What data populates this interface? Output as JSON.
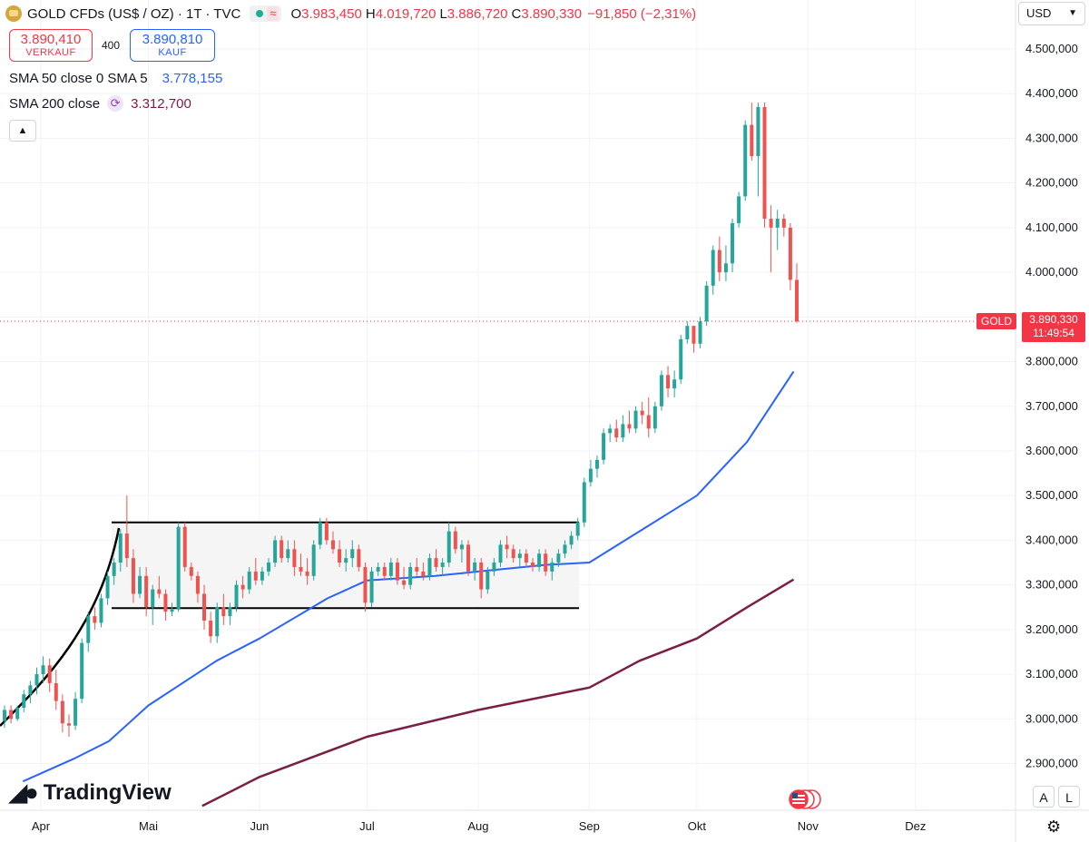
{
  "header": {
    "title": "GOLD CFDs (US$ / OZ) · 1T · TVC",
    "status_wave": "≈",
    "ohlc": [
      {
        "label": "O",
        "value": "3.983,450"
      },
      {
        "label": "H",
        "value": "4.019,720"
      },
      {
        "label": "L",
        "value": "3.886,720"
      },
      {
        "label": "C",
        "value": "3.890,330"
      }
    ],
    "change": "−91,850 (−2,31%)"
  },
  "trade": {
    "sell_price": "3.890,410",
    "sell_label": "VERKAUF",
    "spread": "400",
    "buy_price": "3.890,810",
    "buy_label": "KAUF"
  },
  "indicators": [
    {
      "label": "SMA 50 close 0 SMA 5",
      "icon": "⟳",
      "value": "3.778,155",
      "color": "#2962ff"
    },
    {
      "label": "SMA 200 close",
      "icon": "⟳",
      "value": "3.312,700",
      "color": "#7b1e45"
    }
  ],
  "currency": "USD",
  "current_price": {
    "symbol": "GOLD",
    "price": "3.890,330",
    "countdown": "11:49:54"
  },
  "logo": "TradingView",
  "scale_buttons": {
    "auto": "A",
    "log": "L"
  },
  "colors": {
    "up": "#26a69a",
    "down": "#ef5350",
    "sma50": "#2962ff",
    "sma200": "#7b1e45",
    "price_line": "#f23645"
  },
  "chart_data": {
    "type": "candlestick",
    "title": "GOLD CFDs (US$ / OZ)",
    "y_axis": {
      "ticks": [
        "4.500,000",
        "4.400,000",
        "4.300,000",
        "4.200,000",
        "4.100,000",
        "4.000,000",
        "3.900,000",
        "3.800,000",
        "3.700,000",
        "3.600,000",
        "3.500,000",
        "3.400,000",
        "3.300,000",
        "3.200,000",
        "3.100,000",
        "3.000,000",
        "2.900,000"
      ],
      "range": [
        2840,
        4545
      ]
    },
    "x_axis": {
      "ticks": [
        "Apr",
        "Mai",
        "Jun",
        "Jul",
        "Aug",
        "Sep",
        "Okt",
        "Nov",
        "Dez"
      ],
      "tick_dates": [
        "2025-04-01",
        "2025-05-01",
        "2025-06-01",
        "2025-07-01",
        "2025-08-01",
        "2025-09-01",
        "2025-10-01",
        "2025-11-01",
        "2025-12-01"
      ]
    },
    "grid": true,
    "series": [
      {
        "name": "SMA 50 close",
        "points": [
          [
            "2025-03-27",
            2860
          ],
          [
            "2025-04-10",
            2910
          ],
          [
            "2025-04-20",
            2950
          ],
          [
            "2025-05-01",
            3030
          ],
          [
            "2025-05-20",
            3130
          ],
          [
            "2025-06-01",
            3180
          ],
          [
            "2025-06-20",
            3270
          ],
          [
            "2025-07-01",
            3310
          ],
          [
            "2025-07-20",
            3320
          ],
          [
            "2025-08-01",
            3330
          ],
          [
            "2025-08-20",
            3345
          ],
          [
            "2025-09-01",
            3350
          ],
          [
            "2025-09-15",
            3420
          ],
          [
            "2025-10-01",
            3500
          ],
          [
            "2025-10-15",
            3620
          ],
          [
            "2025-10-28",
            3778
          ]
        ]
      },
      {
        "name": "SMA 200 close",
        "points": [
          [
            "2025-05-16",
            2805
          ],
          [
            "2025-06-01",
            2870
          ],
          [
            "2025-07-01",
            2960
          ],
          [
            "2025-08-01",
            3020
          ],
          [
            "2025-09-01",
            3070
          ],
          [
            "2025-09-15",
            3130
          ],
          [
            "2025-10-01",
            3180
          ],
          [
            "2025-10-15",
            3250
          ],
          [
            "2025-10-28",
            3312
          ]
        ]
      }
    ],
    "candles_ohlc": [
      [
        2995,
        3030,
        2980,
        3020
      ],
      [
        3020,
        3030,
        2990,
        3000
      ],
      [
        3000,
        3030,
        2995,
        3025
      ],
      [
        3025,
        3065,
        3015,
        3055
      ],
      [
        3055,
        3085,
        3035,
        3075
      ],
      [
        3075,
        3115,
        3055,
        3100
      ],
      [
        3100,
        3140,
        3080,
        3120
      ],
      [
        3120,
        3135,
        3060,
        3080
      ],
      [
        3080,
        3110,
        3020,
        3040
      ],
      [
        3040,
        3055,
        2970,
        2990
      ],
      [
        2990,
        3010,
        2960,
        2985
      ],
      [
        2985,
        3060,
        2975,
        3045
      ],
      [
        3045,
        3180,
        3035,
        3170
      ],
      [
        3170,
        3240,
        3150,
        3230
      ],
      [
        3230,
        3250,
        3200,
        3215
      ],
      [
        3215,
        3280,
        3205,
        3270
      ],
      [
        3270,
        3330,
        3255,
        3320
      ],
      [
        3320,
        3360,
        3300,
        3350
      ],
      [
        3350,
        3425,
        3330,
        3415
      ],
      [
        3415,
        3500,
        3340,
        3360
      ],
      [
        3360,
        3380,
        3260,
        3280
      ],
      [
        3280,
        3340,
        3270,
        3320
      ],
      [
        3320,
        3340,
        3230,
        3250
      ],
      [
        3250,
        3300,
        3210,
        3290
      ],
      [
        3290,
        3320,
        3270,
        3280
      ],
      [
        3280,
        3290,
        3220,
        3240
      ],
      [
        3240,
        3260,
        3230,
        3245
      ],
      [
        3245,
        3440,
        3240,
        3430
      ],
      [
        3430,
        3440,
        3330,
        3340
      ],
      [
        3340,
        3350,
        3310,
        3320
      ],
      [
        3320,
        3330,
        3260,
        3280
      ],
      [
        3280,
        3300,
        3200,
        3220
      ],
      [
        3220,
        3240,
        3170,
        3185
      ],
      [
        3185,
        3260,
        3170,
        3250
      ],
      [
        3250,
        3280,
        3210,
        3230
      ],
      [
        3230,
        3260,
        3210,
        3250
      ],
      [
        3250,
        3310,
        3240,
        3300
      ],
      [
        3300,
        3320,
        3270,
        3290
      ],
      [
        3290,
        3340,
        3280,
        3330
      ],
      [
        3330,
        3360,
        3300,
        3310
      ],
      [
        3310,
        3340,
        3300,
        3330
      ],
      [
        3330,
        3360,
        3320,
        3350
      ],
      [
        3350,
        3410,
        3340,
        3400
      ],
      [
        3400,
        3410,
        3350,
        3360
      ],
      [
        3360,
        3400,
        3350,
        3380
      ],
      [
        3380,
        3400,
        3320,
        3340
      ],
      [
        3340,
        3370,
        3320,
        3330
      ],
      [
        3330,
        3360,
        3300,
        3320
      ],
      [
        3320,
        3400,
        3310,
        3390
      ],
      [
        3390,
        3450,
        3380,
        3440
      ],
      [
        3440,
        3450,
        3390,
        3400
      ],
      [
        3400,
        3420,
        3370,
        3380
      ],
      [
        3380,
        3400,
        3340,
        3350
      ],
      [
        3350,
        3380,
        3330,
        3360
      ],
      [
        3360,
        3400,
        3340,
        3380
      ],
      [
        3380,
        3390,
        3330,
        3340
      ],
      [
        3340,
        3350,
        3240,
        3260
      ],
      [
        3260,
        3340,
        3250,
        3330
      ],
      [
        3330,
        3350,
        3320,
        3340
      ],
      [
        3340,
        3350,
        3310,
        3320
      ],
      [
        3320,
        3360,
        3310,
        3350
      ],
      [
        3350,
        3360,
        3300,
        3310
      ],
      [
        3310,
        3340,
        3290,
        3300
      ],
      [
        3300,
        3350,
        3290,
        3340
      ],
      [
        3340,
        3360,
        3320,
        3330
      ],
      [
        3330,
        3350,
        3310,
        3320
      ],
      [
        3320,
        3370,
        3310,
        3360
      ],
      [
        3360,
        3380,
        3330,
        3340
      ],
      [
        3340,
        3360,
        3320,
        3350
      ],
      [
        3350,
        3440,
        3340,
        3420
      ],
      [
        3420,
        3430,
        3370,
        3380
      ],
      [
        3380,
        3400,
        3350,
        3390
      ],
      [
        3390,
        3400,
        3320,
        3330
      ],
      [
        3330,
        3360,
        3310,
        3350
      ],
      [
        3350,
        3360,
        3270,
        3290
      ],
      [
        3290,
        3340,
        3280,
        3330
      ],
      [
        3330,
        3360,
        3320,
        3350
      ],
      [
        3350,
        3400,
        3340,
        3390
      ],
      [
        3390,
        3410,
        3360,
        3380
      ],
      [
        3380,
        3390,
        3350,
        3360
      ],
      [
        3360,
        3380,
        3340,
        3370
      ],
      [
        3370,
        3380,
        3340,
        3350
      ],
      [
        3350,
        3360,
        3330,
        3340
      ],
      [
        3340,
        3380,
        3330,
        3370
      ],
      [
        3370,
        3380,
        3320,
        3330
      ],
      [
        3330,
        3360,
        3310,
        3350
      ],
      [
        3350,
        3380,
        3340,
        3370
      ],
      [
        3370,
        3400,
        3360,
        3390
      ],
      [
        3390,
        3420,
        3380,
        3410
      ],
      [
        3410,
        3450,
        3400,
        3440
      ],
      [
        3440,
        3540,
        3430,
        3530
      ],
      [
        3530,
        3580,
        3520,
        3560
      ],
      [
        3560,
        3590,
        3540,
        3580
      ],
      [
        3580,
        3650,
        3570,
        3640
      ],
      [
        3640,
        3660,
        3620,
        3650
      ],
      [
        3650,
        3670,
        3620,
        3630
      ],
      [
        3630,
        3680,
        3620,
        3660
      ],
      [
        3660,
        3690,
        3640,
        3650
      ],
      [
        3650,
        3700,
        3640,
        3690
      ],
      [
        3690,
        3710,
        3660,
        3680
      ],
      [
        3680,
        3720,
        3630,
        3650
      ],
      [
        3650,
        3710,
        3640,
        3700
      ],
      [
        3700,
        3780,
        3690,
        3770
      ],
      [
        3770,
        3790,
        3720,
        3740
      ],
      [
        3740,
        3780,
        3720,
        3760
      ],
      [
        3760,
        3860,
        3750,
        3850
      ],
      [
        3850,
        3890,
        3840,
        3880
      ],
      [
        3880,
        3880,
        3820,
        3840
      ],
      [
        3840,
        3900,
        3830,
        3890
      ],
      [
        3890,
        3980,
        3880,
        3970
      ],
      [
        3970,
        4060,
        3950,
        4050
      ],
      [
        4050,
        4080,
        3980,
        4000
      ],
      [
        4000,
        4060,
        3980,
        4020
      ],
      [
        4020,
        4120,
        4000,
        4110
      ],
      [
        4110,
        4180,
        4100,
        4170
      ],
      [
        4170,
        4340,
        4160,
        4330
      ],
      [
        4330,
        4380,
        4250,
        4260
      ],
      [
        4260,
        4380,
        4170,
        4370
      ],
      [
        4370,
        4380,
        4100,
        4120
      ],
      [
        4120,
        4150,
        4000,
        4100
      ],
      [
        4100,
        4140,
        4050,
        4120
      ],
      [
        4120,
        4130,
        4080,
        4100
      ],
      [
        4100,
        4110,
        3960,
        3983
      ],
      [
        3983,
        4020,
        3887,
        3890
      ]
    ],
    "annotations": [
      {
        "type": "range-box",
        "top": 3440,
        "bottom": 3248,
        "label": "consolidation range"
      },
      {
        "type": "parabolic-curve",
        "label": "parabolic rally into April high"
      }
    ],
    "current_price_line": 3890.33
  }
}
